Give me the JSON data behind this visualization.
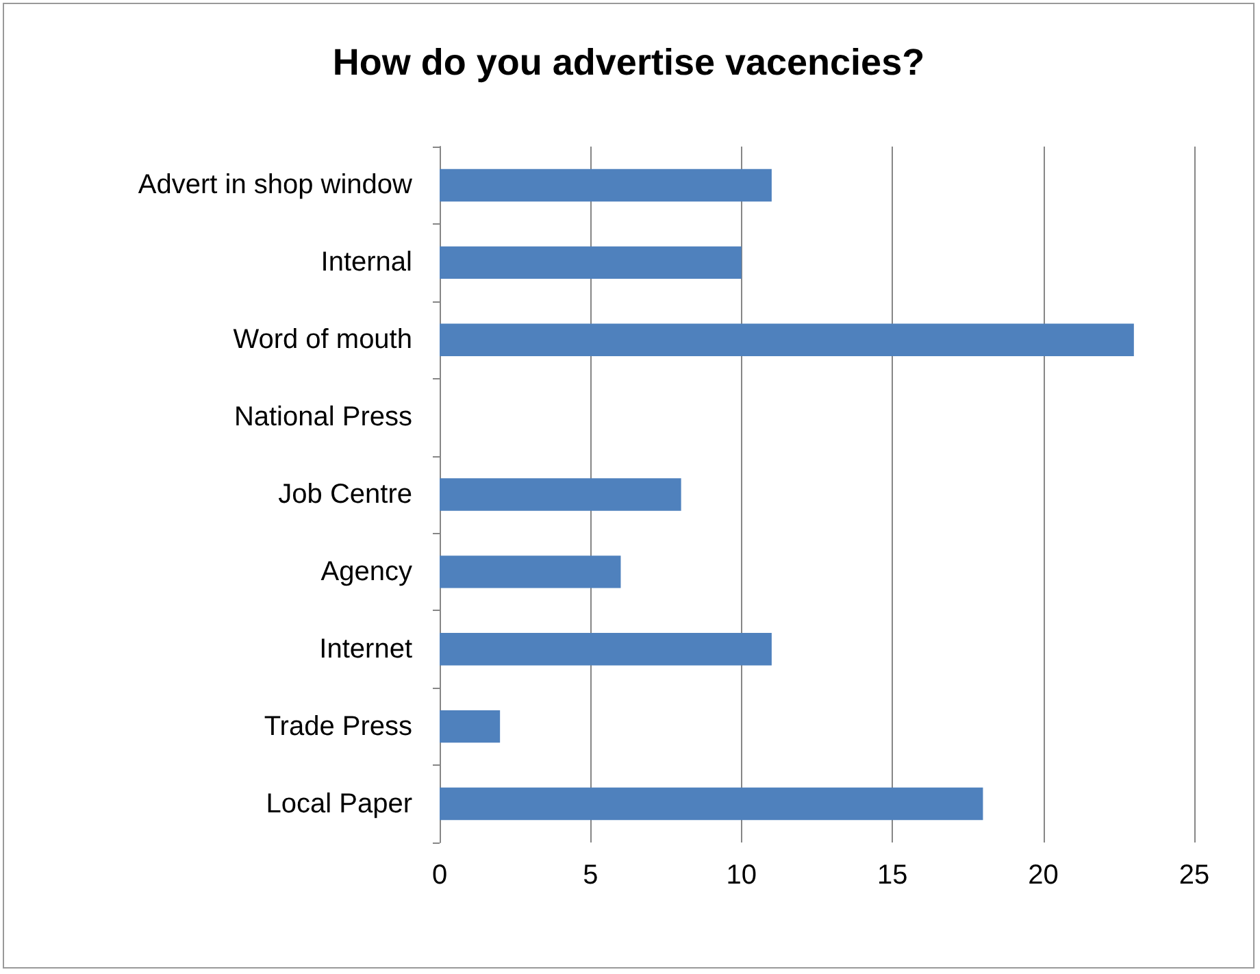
{
  "chart_data": {
    "type": "bar",
    "orientation": "horizontal",
    "title": "How do you advertise vacencies?",
    "categories": [
      "Advert in shop window",
      "Internal",
      "Word of mouth",
      "National Press",
      "Job Centre",
      "Agency",
      "Internet",
      "Trade Press",
      "Local Paper"
    ],
    "values": [
      11,
      10,
      23,
      0,
      8,
      6,
      11,
      2,
      18
    ],
    "color": "#4f81bd",
    "xlim": [
      0,
      25
    ],
    "xticks": [
      0,
      5,
      10,
      15,
      20,
      25
    ],
    "grid": "x"
  }
}
